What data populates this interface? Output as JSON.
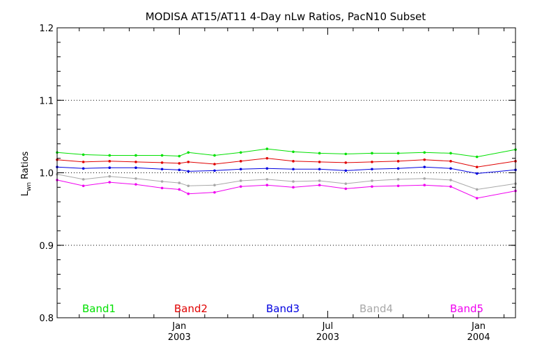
{
  "chart_data": {
    "type": "line",
    "title": "MODISA AT15/AT11 4-Day nLw Ratios, PacN10 Subset",
    "ylabel_main": "L",
    "ylabel_sub": "wn",
    "ylabel_rest": " Ratios",
    "xlabel": "",
    "ylim": [
      0.8,
      1.2
    ],
    "yticks": [
      "0.8",
      "0.9",
      "1.0",
      "1.1",
      "1.2"
    ],
    "xlim": [
      "2002-08-05",
      "2004-02-15"
    ],
    "xtick_labels": [
      {
        "month": "Jan",
        "year": "2003",
        "date": "2003-01-01"
      },
      {
        "month": "Jul",
        "year": "2003",
        "date": "2003-07-01"
      },
      {
        "month": "Jan",
        "year": "2004",
        "date": "2004-01-01"
      }
    ],
    "grid": "horizontal dotted",
    "reference_line": 1.0,
    "legend_placement": "bottom",
    "x": [
      "2002-08-05",
      "2002-09-06",
      "2002-10-08",
      "2002-11-09",
      "2002-12-11",
      "2003-01-01",
      "2003-01-12",
      "2003-02-13",
      "2003-03-17",
      "2003-04-18",
      "2003-05-20",
      "2003-06-21",
      "2003-07-23",
      "2003-08-24",
      "2003-09-25",
      "2003-10-27",
      "2003-11-28",
      "2003-12-30",
      "2004-02-15"
    ],
    "series": [
      {
        "name": "Band1",
        "color": "#00e000",
        "values": [
          1.028,
          1.025,
          1.024,
          1.024,
          1.024,
          1.023,
          1.028,
          1.024,
          1.028,
          1.033,
          1.029,
          1.027,
          1.026,
          1.027,
          1.027,
          1.028,
          1.027,
          1.022,
          1.032
        ]
      },
      {
        "name": "Band2",
        "color": "#e00000",
        "values": [
          1.018,
          1.015,
          1.016,
          1.015,
          1.014,
          1.013,
          1.015,
          1.012,
          1.016,
          1.02,
          1.016,
          1.015,
          1.014,
          1.015,
          1.016,
          1.018,
          1.016,
          1.008,
          1.016
        ]
      },
      {
        "name": "Band3",
        "color": "#0000e0",
        "values": [
          1.008,
          1.006,
          1.007,
          1.007,
          1.005,
          1.004,
          1.002,
          1.003,
          1.005,
          1.006,
          1.005,
          1.005,
          1.003,
          1.005,
          1.006,
          1.008,
          1.006,
          0.999,
          1.004
        ]
      },
      {
        "name": "Band4",
        "color": "#a8a8a8",
        "values": [
          0.998,
          0.991,
          0.995,
          0.992,
          0.988,
          0.986,
          0.982,
          0.983,
          0.989,
          0.991,
          0.988,
          0.989,
          0.985,
          0.989,
          0.991,
          0.992,
          0.99,
          0.977,
          0.985
        ]
      },
      {
        "name": "Band5",
        "color": "#f000f0",
        "values": [
          0.99,
          0.982,
          0.987,
          0.984,
          0.979,
          0.977,
          0.971,
          0.973,
          0.981,
          0.983,
          0.98,
          0.983,
          0.978,
          0.981,
          0.982,
          0.983,
          0.981,
          0.965,
          0.975
        ]
      }
    ]
  }
}
